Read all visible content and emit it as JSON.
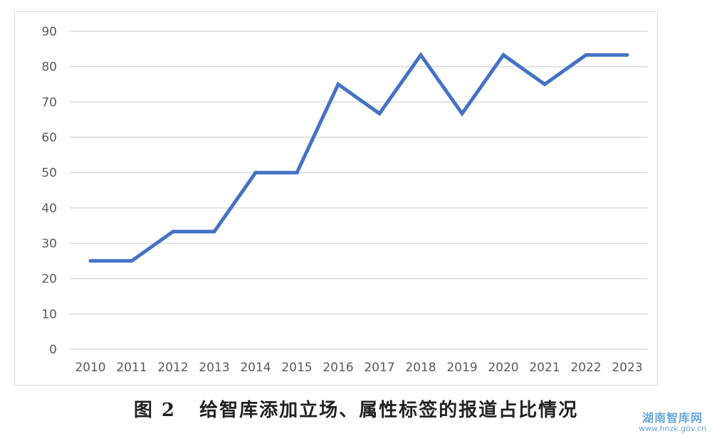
{
  "chart_data": {
    "type": "line",
    "x": [
      "2010",
      "2011",
      "2012",
      "2013",
      "2014",
      "2015",
      "2016",
      "2017",
      "2018",
      "2019",
      "2020",
      "2021",
      "2022",
      "2023"
    ],
    "series": [
      {
        "values": [
          25,
          25,
          33.3,
          33.3,
          50,
          50,
          75,
          66.7,
          83.3,
          66.7,
          83.3,
          75,
          83.3,
          83.3
        ]
      }
    ],
    "ylim": [
      0,
      90
    ],
    "yticks": [
      0,
      10,
      20,
      30,
      40,
      50,
      60,
      70,
      80,
      90
    ],
    "grid": true,
    "line_color": "#4472C4",
    "grid_color": "#d9d9d9",
    "tick_color": "#595959"
  },
  "caption": {
    "label": "图 2",
    "text": "给智库添加立场、属性标签的报道占比情况"
  },
  "watermark": {
    "name": "湖南智库网",
    "url": "www.hnzk.gov.cn"
  }
}
